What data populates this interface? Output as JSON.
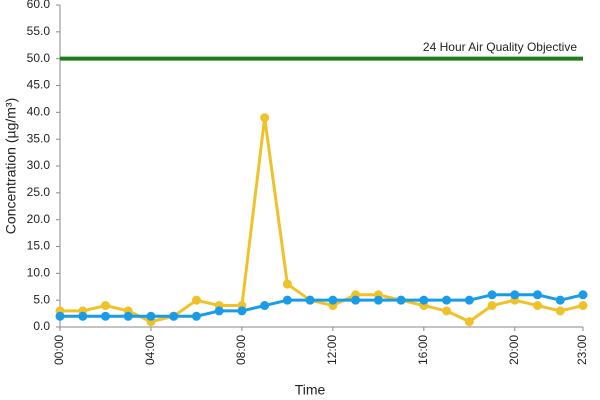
{
  "chart_data": {
    "type": "line",
    "x_label": "Time",
    "y_label": "Concentration (µg/m³)",
    "categories": [
      "00:00",
      null,
      null,
      null,
      "04:00",
      null,
      null,
      null,
      "08:00",
      null,
      null,
      null,
      "12:00",
      null,
      null,
      null,
      "16:00",
      null,
      null,
      null,
      "20:00",
      null,
      null,
      "23:00"
    ],
    "series": [
      {
        "color": "#f0c22a",
        "values": [
          3,
          3,
          4,
          3,
          1,
          2,
          5,
          4,
          4,
          39,
          8,
          5,
          4,
          6,
          6,
          5,
          4,
          3,
          1,
          4,
          5,
          4,
          3,
          4
        ]
      },
      {
        "color": "#1a9be6",
        "values": [
          2,
          2,
          2,
          2,
          2,
          2,
          2,
          3,
          3,
          4,
          5,
          5,
          5,
          5,
          5,
          5,
          5,
          5,
          5,
          6,
          6,
          6,
          5,
          6
        ]
      }
    ],
    "objective": {
      "value": 50,
      "label": "24 Hour Air Quality Objective",
      "color": "#1e7b1e"
    },
    "ylim": [
      0,
      60
    ],
    "yticks": [
      {
        "value": 0,
        "label": "0.0"
      },
      {
        "value": 5,
        "label": "5.0"
      },
      {
        "value": 10,
        "label": "10.0"
      },
      {
        "value": 15,
        "label": "15.0"
      },
      {
        "value": 20,
        "label": "20.0"
      },
      {
        "value": 25,
        "label": "25.0"
      },
      {
        "value": 30,
        "label": "30.0"
      },
      {
        "value": 35,
        "label": "35.0"
      },
      {
        "value": 40,
        "label": "40.0"
      },
      {
        "value": 45,
        "label": "45.0"
      },
      {
        "value": 50,
        "label": "50.0"
      },
      {
        "value": 55,
        "label": "55.0"
      },
      {
        "value": 60,
        "label": "60.0"
      }
    ],
    "grid": false
  }
}
